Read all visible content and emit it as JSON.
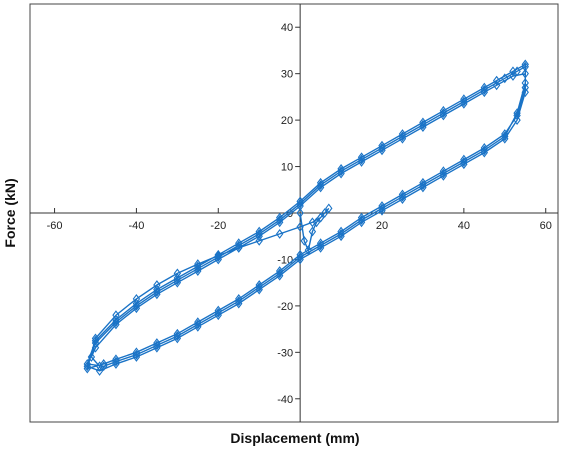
{
  "chart_data": {
    "type": "scatter",
    "title": "",
    "xlabel": "Displacement (mm)",
    "ylabel": "Force (kN)",
    "xlim": [
      -66,
      63
    ],
    "ylim": [
      -45,
      45
    ],
    "xticks": [
      -60,
      -40,
      -20,
      20,
      40,
      60
    ],
    "yticks": [
      40,
      30,
      20,
      10,
      0,
      -10,
      -20,
      -30,
      -40
    ],
    "grid": false,
    "legend": "none",
    "marker": "diamond",
    "color": "#1a73c6",
    "series": [
      {
        "values": [
          [
            0,
            0
          ],
          [
            1,
            -6
          ],
          [
            2,
            -8
          ],
          [
            3,
            -4
          ],
          [
            4,
            -2
          ],
          [
            5,
            -1
          ],
          [
            6,
            0
          ],
          [
            7,
            1
          ],
          [
            5,
            -1
          ],
          [
            3,
            -2
          ],
          [
            0,
            -3
          ],
          [
            -5,
            -4.5
          ],
          [
            -10,
            -6
          ],
          [
            -15,
            -7.5
          ],
          [
            -20,
            -9.2
          ],
          [
            -25,
            -11
          ],
          [
            -30,
            -13
          ],
          [
            -35,
            -15.5
          ],
          [
            -40,
            -18.5
          ],
          [
            -45,
            -22
          ],
          [
            -50,
            -27
          ],
          [
            -52,
            -33.5
          ],
          [
            -48,
            -32.5
          ],
          [
            -45,
            -31.5
          ],
          [
            -40,
            -30
          ],
          [
            -35,
            -28
          ],
          [
            -30,
            -26
          ],
          [
            -25,
            -23.5
          ],
          [
            -20,
            -21
          ],
          [
            -15,
            -18.5
          ],
          [
            -10,
            -15.5
          ],
          [
            -5,
            -12.5
          ],
          [
            0,
            -9
          ],
          [
            5,
            -6.5
          ],
          [
            10,
            -4
          ],
          [
            15,
            -1
          ],
          [
            20,
            1.5
          ],
          [
            25,
            4
          ],
          [
            30,
            6.5
          ],
          [
            35,
            9
          ],
          [
            40,
            11.5
          ],
          [
            45,
            14
          ],
          [
            50,
            17
          ],
          [
            53,
            21
          ],
          [
            55,
            27
          ],
          [
            55,
            31.5
          ],
          [
            53,
            30.5
          ],
          [
            50,
            29
          ],
          [
            45,
            26.5
          ],
          [
            40,
            24
          ],
          [
            35,
            21.5
          ],
          [
            30,
            19
          ],
          [
            25,
            16.5
          ],
          [
            20,
            14
          ],
          [
            15,
            11.5
          ],
          [
            10,
            9
          ],
          [
            5,
            6
          ],
          [
            0,
            2
          ],
          [
            -5,
            -1.5
          ],
          [
            -10,
            -4.5
          ],
          [
            -15,
            -7
          ],
          [
            -20,
            -9.5
          ],
          [
            -25,
            -12
          ],
          [
            -30,
            -14.5
          ],
          [
            -35,
            -17
          ],
          [
            -40,
            -20
          ],
          [
            -45,
            -23.5
          ],
          [
            -50,
            -28
          ],
          [
            -52,
            -33
          ],
          [
            -49,
            -34
          ],
          [
            -45,
            -32.5
          ],
          [
            -40,
            -31
          ],
          [
            -35,
            -29
          ],
          [
            -30,
            -27
          ],
          [
            -25,
            -24.5
          ],
          [
            -20,
            -22
          ],
          [
            -15,
            -19.5
          ],
          [
            -10,
            -16.5
          ],
          [
            -5,
            -13.5
          ],
          [
            0,
            -10
          ],
          [
            5,
            -7.5
          ],
          [
            10,
            -5
          ],
          [
            15,
            -2
          ],
          [
            20,
            0.5
          ],
          [
            25,
            3
          ],
          [
            30,
            5.5
          ],
          [
            35,
            8
          ],
          [
            40,
            10.5
          ],
          [
            45,
            13
          ],
          [
            50,
            16
          ],
          [
            53,
            20
          ],
          [
            55,
            26
          ],
          [
            55,
            32
          ],
          [
            52,
            30.5
          ],
          [
            48,
            28.5
          ],
          [
            45,
            27
          ],
          [
            40,
            24.5
          ],
          [
            35,
            22
          ],
          [
            30,
            19.5
          ],
          [
            25,
            17
          ],
          [
            20,
            14.5
          ],
          [
            15,
            12
          ],
          [
            10,
            9.5
          ],
          [
            5,
            6.5
          ],
          [
            0,
            2.5
          ],
          [
            -5,
            -1
          ],
          [
            -10,
            -4
          ],
          [
            -15,
            -6.5
          ],
          [
            -20,
            -9
          ],
          [
            -25,
            -11.5
          ],
          [
            -30,
            -14
          ],
          [
            -35,
            -16.5
          ],
          [
            -40,
            -19.5
          ],
          [
            -45,
            -23
          ],
          [
            -50,
            -27.5
          ],
          [
            -52,
            -32.5
          ],
          [
            -48,
            -33
          ],
          [
            -45,
            -32
          ],
          [
            -40,
            -30.5
          ],
          [
            -35,
            -28.5
          ],
          [
            -30,
            -26.5
          ],
          [
            -25,
            -24
          ],
          [
            -20,
            -21.5
          ],
          [
            -15,
            -19
          ],
          [
            -10,
            -16
          ],
          [
            -5,
            -13
          ],
          [
            0,
            -9.5
          ],
          [
            5,
            -7
          ],
          [
            10,
            -4.5
          ],
          [
            15,
            -1.5
          ],
          [
            20,
            1
          ],
          [
            25,
            3.5
          ],
          [
            30,
            6
          ],
          [
            35,
            8.5
          ],
          [
            40,
            11
          ],
          [
            45,
            13.5
          ],
          [
            50,
            16.5
          ],
          [
            53,
            21.5
          ],
          [
            55,
            28
          ],
          [
            55,
            30
          ],
          [
            52,
            29.5
          ],
          [
            48,
            27.5
          ],
          [
            45,
            26
          ],
          [
            40,
            23.5
          ],
          [
            35,
            21
          ],
          [
            30,
            18.5
          ],
          [
            25,
            16
          ],
          [
            20,
            13.5
          ],
          [
            15,
            11
          ],
          [
            10,
            8.5
          ],
          [
            5,
            5.5
          ],
          [
            0,
            1.5
          ],
          [
            -5,
            -2
          ],
          [
            -10,
            -5
          ],
          [
            -15,
            -7.5
          ],
          [
            -20,
            -10
          ],
          [
            -25,
            -12.5
          ],
          [
            -30,
            -15
          ],
          [
            -35,
            -17.5
          ],
          [
            -40,
            -20.5
          ],
          [
            -45,
            -24
          ],
          [
            -50,
            -29
          ],
          [
            -51,
            -31
          ],
          [
            -49,
            -33
          ]
        ]
      }
    ]
  }
}
